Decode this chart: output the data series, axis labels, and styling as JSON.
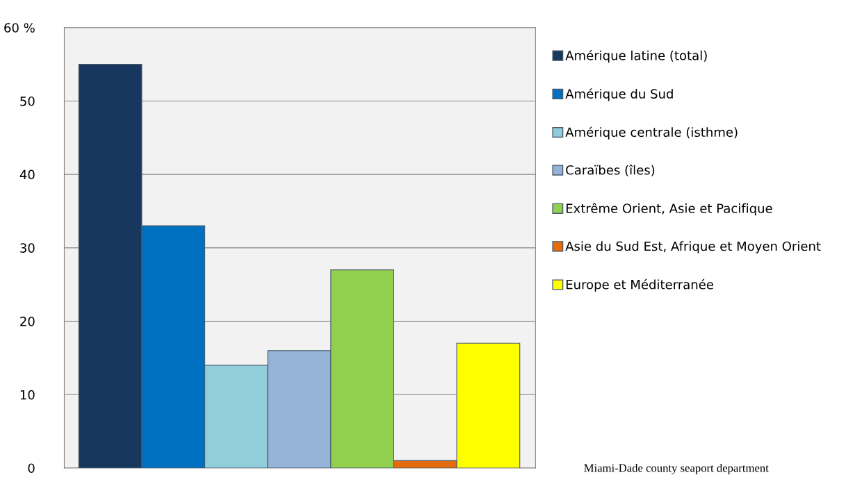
{
  "chart_data": {
    "type": "bar",
    "categories": [
      null,
      null,
      null,
      null,
      null,
      null,
      null
    ],
    "series": [
      {
        "name": "Amérique latine (total)",
        "color": "#17375e",
        "values": [
          55,
          null,
          null,
          null,
          null,
          null,
          null
        ]
      },
      {
        "name": "Amérique du Sud",
        "color": "#0070c0",
        "values": [
          null,
          33,
          null,
          null,
          null,
          null,
          null
        ]
      },
      {
        "name": "Amérique centrale (isthme)",
        "color": "#92cddc",
        "values": [
          null,
          null,
          14,
          null,
          null,
          null,
          null
        ]
      },
      {
        "name": "Caraïbes (îles)",
        "color": "#95b3d7",
        "values": [
          null,
          null,
          null,
          16,
          null,
          null,
          null
        ]
      },
      {
        "name": "Extrême Orient, Asie et Pacifique",
        "color": "#92d050",
        "values": [
          null,
          null,
          null,
          null,
          27,
          null,
          null
        ]
      },
      {
        "name": "Asie du Sud Est, Afrique et Moyen Orient",
        "color": "#e46c0a",
        "values": [
          null,
          null,
          null,
          null,
          null,
          1,
          null
        ]
      },
      {
        "name": "Europe et Méditerranée",
        "color": "#ffff00",
        "values": [
          null,
          null,
          null,
          null,
          null,
          null,
          17
        ]
      }
    ],
    "ylim": [
      0,
      60
    ],
    "yticks": [
      0,
      10,
      20,
      30,
      40,
      50,
      {
        "value": 60,
        "label": "60 %"
      }
    ],
    "grid": "y",
    "legend": "right",
    "annotations": [
      "Miami-Dade county seaport department"
    ]
  }
}
